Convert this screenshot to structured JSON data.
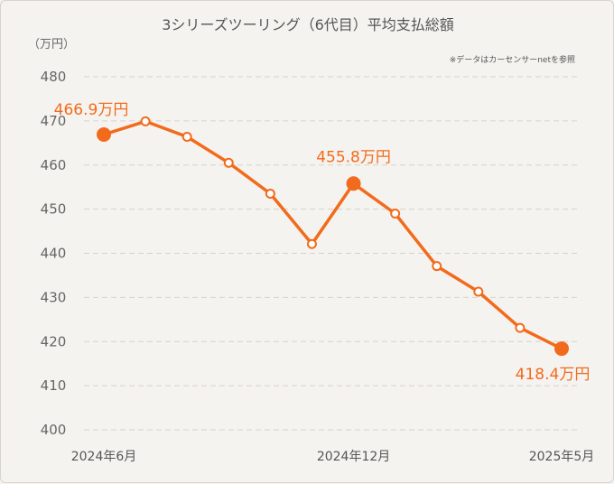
{
  "chart_data": {
    "type": "line",
    "title": "3シリーズツーリング（6代目）平均支払総額",
    "note": "※データはカーセンサーnetを参照",
    "y_unit": "（万円）",
    "ylim": [
      400,
      480
    ],
    "y_ticks": [
      "400",
      "410",
      "420",
      "430",
      "440",
      "450",
      "460",
      "470",
      "480"
    ],
    "x_ticks": [
      {
        "index": 0,
        "label": "2024年6月"
      },
      {
        "index": 6,
        "label": "2024年12月"
      },
      {
        "index": 11,
        "label": "2025年5月"
      }
    ],
    "grid": true,
    "color": "#f26b1d",
    "series": [
      {
        "x": [
          "2024-06",
          "2024-07",
          "2024-08",
          "2024-09",
          "2024-10",
          "2024-11",
          "2024-12",
          "2025-01",
          "2025-02",
          "2025-03",
          "2025-04",
          "2025-05"
        ],
        "values": [
          466.9,
          469.9,
          466.4,
          460.5,
          453.5,
          442.1,
          455.8,
          449.0,
          437.1,
          431.3,
          423.1,
          418.4
        ]
      }
    ],
    "highlights": [
      {
        "index": 0,
        "label": "466.9万円"
      },
      {
        "index": 6,
        "label": "455.8万円"
      },
      {
        "index": 11,
        "label": "418.4万円"
      }
    ]
  }
}
